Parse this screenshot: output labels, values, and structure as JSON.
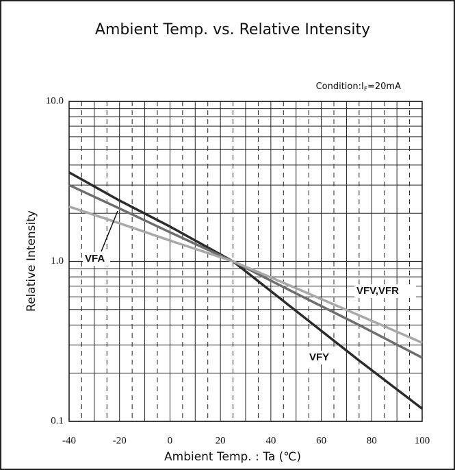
{
  "chart_data": {
    "type": "line",
    "title": "Ambient Temp. vs. Relative Intensity",
    "condition": {
      "text": "Condition:I",
      "subscript": "F",
      "rest": "=20mA"
    },
    "xlabel": "Ambient Temp. : Ta (℃)",
    "ylabel": "Relative Intensity",
    "x": [
      -40,
      -20,
      0,
      25,
      50,
      75,
      100
    ],
    "series": [
      {
        "name": "VFY",
        "color": "#2b2b2b",
        "values": [
          3.6,
          2.4,
          1.65,
          1.0,
          0.49,
          0.24,
          0.12
        ]
      },
      {
        "name": "VFV,VFR",
        "color": "#6e6e6e",
        "values": [
          3.0,
          2.14,
          1.52,
          1.0,
          0.63,
          0.4,
          0.25
        ]
      },
      {
        "name": "VFA",
        "color": "#a8a8a8",
        "values": [
          2.2,
          1.73,
          1.35,
          1.0,
          0.68,
          0.46,
          0.31
        ]
      }
    ],
    "xlim": [
      -40,
      100
    ],
    "xticks": [
      -40,
      -20,
      0,
      20,
      40,
      60,
      80,
      100
    ],
    "ylim": [
      0.1,
      10
    ],
    "yticks": [
      {
        "value": 0.1,
        "label": "0.1"
      },
      {
        "value": 1,
        "label": "1.0"
      },
      {
        "value": 10,
        "label": "10.0"
      }
    ],
    "ylog": true,
    "grid": true
  }
}
